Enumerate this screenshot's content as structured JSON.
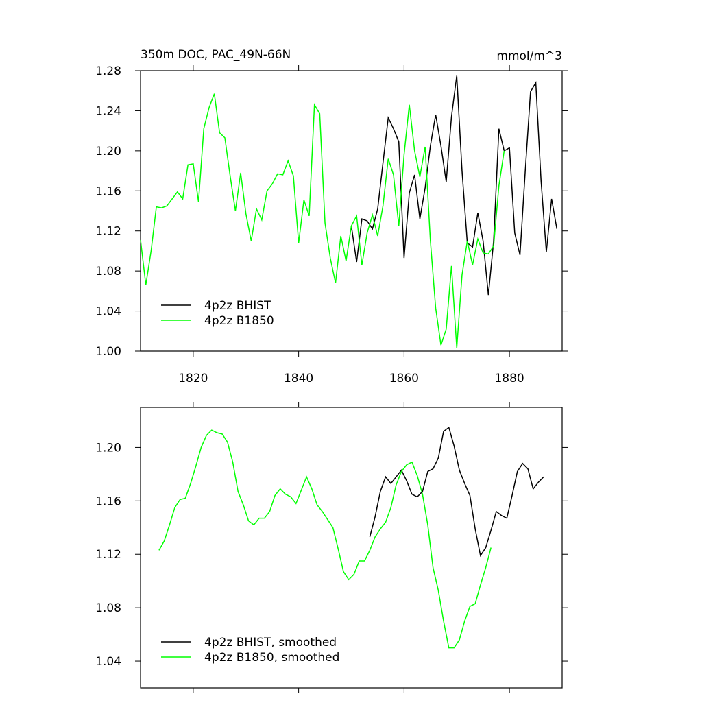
{
  "chart_data": [
    {
      "type": "line",
      "title": "350m DOC, PAC_49N-66N",
      "right_title": "mmol/m^3",
      "xlim": [
        1810,
        1890
      ],
      "xticks": [
        1820,
        1840,
        1860,
        1880
      ],
      "ylim": [
        1.0,
        1.28
      ],
      "yticks": [
        {
          "value": 1.0,
          "label": "1.00"
        },
        1.04,
        1.08,
        1.12,
        1.16,
        {
          "value": 1.2,
          "label": "1.20"
        },
        1.24,
        1.28
      ],
      "legend": "lower left",
      "series": [
        {
          "name": "4p2z BHIST",
          "color": "#000000",
          "x": [
            1850,
            1851,
            1852,
            1853,
            1854,
            1855,
            1856,
            1857,
            1858,
            1859,
            1860,
            1861,
            1862,
            1863,
            1864,
            1865,
            1866,
            1867,
            1868,
            1869,
            1870,
            1871,
            1872,
            1873,
            1874,
            1875,
            1876,
            1877,
            1878,
            1879,
            1880,
            1881,
            1882,
            1883,
            1884,
            1885,
            1886,
            1887,
            1888,
            1889
          ],
          "values": [
            1.125,
            1.089,
            1.132,
            1.13,
            1.122,
            1.142,
            1.188,
            1.233,
            1.222,
            1.209,
            1.093,
            1.158,
            1.176,
            1.132,
            1.163,
            1.205,
            1.236,
            1.205,
            1.169,
            1.234,
            1.275,
            1.18,
            1.108,
            1.104,
            1.138,
            1.11,
            1.056,
            1.11,
            1.222,
            1.2,
            1.203,
            1.118,
            1.096,
            1.18,
            1.259,
            1.268,
            1.17,
            1.099,
            1.152,
            1.122
          ]
        },
        {
          "name": "4p2z B1850",
          "color": "#00ff00",
          "x": [
            1810,
            1811,
            1812,
            1813,
            1814,
            1815,
            1816,
            1817,
            1818,
            1819,
            1820,
            1821,
            1822,
            1823,
            1824,
            1825,
            1826,
            1827,
            1828,
            1829,
            1830,
            1831,
            1832,
            1833,
            1834,
            1835,
            1836,
            1837,
            1838,
            1839,
            1840,
            1841,
            1842,
            1843,
            1844,
            1845,
            1846,
            1847,
            1848,
            1849,
            1850,
            1851,
            1852,
            1853,
            1854,
            1855,
            1856,
            1857,
            1858,
            1859,
            1860,
            1861,
            1862,
            1863,
            1864,
            1865,
            1866,
            1867,
            1868,
            1869,
            1870,
            1871,
            1872,
            1873,
            1874,
            1875,
            1876,
            1877,
            1878,
            1879
          ],
          "values": [
            1.111,
            1.066,
            1.1,
            1.144,
            1.143,
            1.145,
            1.152,
            1.159,
            1.152,
            1.186,
            1.187,
            1.149,
            1.222,
            1.243,
            1.257,
            1.218,
            1.213,
            1.175,
            1.14,
            1.178,
            1.137,
            1.11,
            1.142,
            1.131,
            1.16,
            1.167,
            1.177,
            1.176,
            1.19,
            1.175,
            1.108,
            1.151,
            1.135,
            1.246,
            1.237,
            1.128,
            1.093,
            1.068,
            1.115,
            1.09,
            1.125,
            1.135,
            1.086,
            1.118,
            1.136,
            1.115,
            1.145,
            1.192,
            1.176,
            1.125,
            1.196,
            1.246,
            1.2,
            1.174,
            1.204,
            1.11,
            1.043,
            1.006,
            1.022,
            1.085,
            1.003,
            1.076,
            1.11,
            1.086,
            1.112,
            1.098,
            1.097,
            1.105,
            1.165,
            1.2
          ]
        }
      ]
    },
    {
      "type": "line",
      "xlim": [
        1810,
        1890
      ],
      "ylim": [
        1.02,
        1.23
      ],
      "yticks": [
        1.04,
        1.08,
        1.12,
        1.16,
        {
          "value": 1.2,
          "label": "1.20"
        }
      ],
      "legend": "lower left",
      "series": [
        {
          "name": "4p2z BHIST, smoothed",
          "color": "#000000",
          "x": [
            1853.5,
            1854.5,
            1855.5,
            1856.5,
            1857.5,
            1858.5,
            1859.5,
            1860.5,
            1861.5,
            1862.5,
            1863.5,
            1864.5,
            1865.5,
            1866.5,
            1867.5,
            1868.5,
            1869.5,
            1870.5,
            1871.5,
            1872.5,
            1873.5,
            1874.5,
            1875.5,
            1876.5,
            1877.5,
            1878.5,
            1879.5,
            1880.5,
            1881.5,
            1882.5,
            1883.5,
            1884.5,
            1885.5,
            1886.5
          ],
          "values": [
            1.133,
            1.148,
            1.167,
            1.178,
            1.173,
            1.178,
            1.183,
            1.175,
            1.165,
            1.163,
            1.167,
            1.182,
            1.184,
            1.192,
            1.212,
            1.215,
            1.201,
            1.183,
            1.173,
            1.164,
            1.139,
            1.119,
            1.125,
            1.138,
            1.152,
            1.149,
            1.147,
            1.164,
            1.182,
            1.188,
            1.184,
            1.169,
            1.174,
            1.178
          ]
        },
        {
          "name": "4p2z B1850, smoothed",
          "color": "#00ff00",
          "x": [
            1813.5,
            1814.5,
            1815.5,
            1816.5,
            1817.5,
            1818.5,
            1819.5,
            1820.5,
            1821.5,
            1822.5,
            1823.5,
            1824.5,
            1825.5,
            1826.5,
            1827.5,
            1828.5,
            1829.5,
            1830.5,
            1831.5,
            1832.5,
            1833.5,
            1834.5,
            1835.5,
            1836.5,
            1837.5,
            1838.5,
            1839.5,
            1840.5,
            1841.5,
            1842.5,
            1843.5,
            1844.5,
            1845.5,
            1846.5,
            1847.5,
            1848.5,
            1849.5,
            1850.5,
            1851.5,
            1852.5,
            1853.5,
            1854.5,
            1855.5,
            1856.5,
            1857.5,
            1858.5,
            1859.5,
            1860.5,
            1861.5,
            1862.5,
            1863.5,
            1864.5,
            1865.5,
            1866.5,
            1867.5,
            1868.5,
            1869.5,
            1870.5,
            1871.5,
            1872.5,
            1873.5,
            1874.5,
            1875.5,
            1876.5
          ],
          "values": [
            1.123,
            1.13,
            1.142,
            1.155,
            1.161,
            1.162,
            1.173,
            1.186,
            1.2,
            1.209,
            1.213,
            1.211,
            1.21,
            1.204,
            1.189,
            1.167,
            1.157,
            1.145,
            1.142,
            1.147,
            1.147,
            1.152,
            1.164,
            1.169,
            1.165,
            1.163,
            1.158,
            1.168,
            1.178,
            1.169,
            1.157,
            1.152,
            1.146,
            1.14,
            1.124,
            1.107,
            1.101,
            1.105,
            1.115,
            1.115,
            1.123,
            1.133,
            1.139,
            1.144,
            1.155,
            1.172,
            1.182,
            1.187,
            1.189,
            1.179,
            1.165,
            1.142,
            1.11,
            1.093,
            1.07,
            1.05,
            1.05,
            1.056,
            1.07,
            1.081,
            1.083,
            1.097,
            1.11,
            1.125
          ]
        }
      ]
    }
  ]
}
